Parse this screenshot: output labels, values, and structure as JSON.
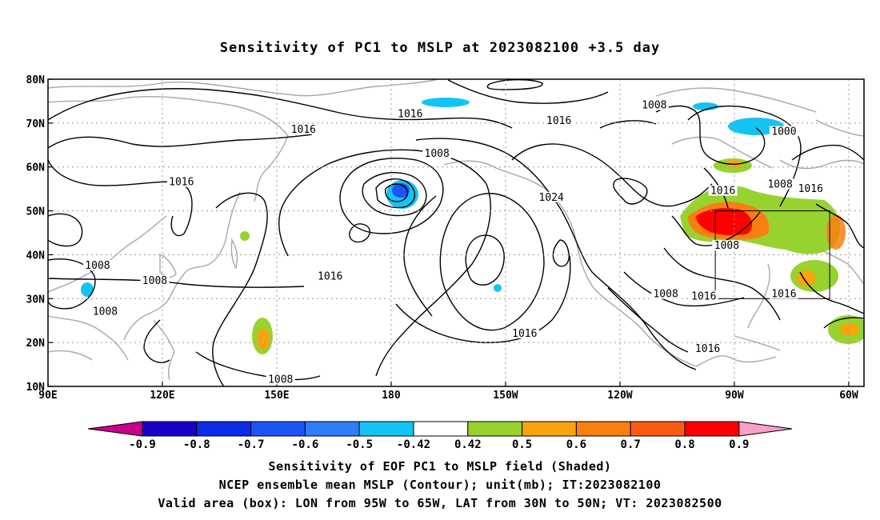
{
  "title": "Sensitivity of PC1 to MSLP at 2023082100 +3.5 day",
  "axes": {
    "lon_min": 90,
    "lon_max": 304,
    "lat_min": 10,
    "lat_max": 80,
    "x_ticks": [
      {
        "lon": 90,
        "label": "90E"
      },
      {
        "lon": 120,
        "label": "120E"
      },
      {
        "lon": 150,
        "label": "150E"
      },
      {
        "lon": 180,
        "label": "180"
      },
      {
        "lon": 210,
        "label": "150W"
      },
      {
        "lon": 240,
        "label": "120W"
      },
      {
        "lon": 270,
        "label": "90W"
      },
      {
        "lon": 300,
        "label": "60W"
      }
    ],
    "y_ticks": [
      {
        "lat": 80,
        "label": "80N"
      },
      {
        "lat": 70,
        "label": "70N"
      },
      {
        "lat": 60,
        "label": "60N"
      },
      {
        "lat": 50,
        "label": "50N"
      },
      {
        "lat": 40,
        "label": "40N"
      },
      {
        "lat": 30,
        "label": "30N"
      },
      {
        "lat": 20,
        "label": "20N"
      },
      {
        "lat": 10,
        "label": "10N"
      }
    ]
  },
  "valid_box": {
    "lon_min": 265,
    "lon_max": 295,
    "lat_min": 30,
    "lat_max": 50
  },
  "contour_labels": [
    {
      "text": "1008",
      "lon": 249,
      "lat": 73.5
    },
    {
      "text": "1016",
      "lon": 185,
      "lat": 71.5
    },
    {
      "text": "1016",
      "lon": 224,
      "lat": 70.0
    },
    {
      "text": "1016",
      "lon": 157,
      "lat": 68.0
    },
    {
      "text": "1000",
      "lon": 283,
      "lat": 67.5
    },
    {
      "text": "1008",
      "lon": 192,
      "lat": 62.5
    },
    {
      "text": "1016",
      "lon": 125,
      "lat": 56.0
    },
    {
      "text": "1008",
      "lon": 282,
      "lat": 55.5
    },
    {
      "text": "1016",
      "lon": 290,
      "lat": 54.5
    },
    {
      "text": "1016",
      "lon": 267,
      "lat": 54.0
    },
    {
      "text": "1024",
      "lon": 222,
      "lat": 52.5
    },
    {
      "text": "1008",
      "lon": 268,
      "lat": 41.5
    },
    {
      "text": "1016",
      "lon": 164,
      "lat": 34.5
    },
    {
      "text": "1008",
      "lon": 103,
      "lat": 37.0
    },
    {
      "text": "1008",
      "lon": 118,
      "lat": 33.5
    },
    {
      "text": "1008",
      "lon": 252,
      "lat": 30.5
    },
    {
      "text": "1016",
      "lon": 262,
      "lat": 30.0
    },
    {
      "text": "1016",
      "lon": 283,
      "lat": 30.5
    },
    {
      "text": "1008",
      "lon": 105,
      "lat": 26.5
    },
    {
      "text": "1016",
      "lon": 215,
      "lat": 21.5
    },
    {
      "text": "1016",
      "lon": 263,
      "lat": 18.0
    },
    {
      "text": "1008",
      "lon": 151,
      "lat": 11.0
    }
  ],
  "colorbar": {
    "labels": [
      "-0.9",
      "-0.8",
      "-0.7",
      "-0.6",
      "-0.5",
      "-0.42",
      "0.42",
      "0.5",
      "0.6",
      "0.7",
      "0.8",
      "0.9"
    ],
    "colors": [
      "#1800c8",
      "#0b2de6",
      "#1b55f5",
      "#2d7ef8",
      "#12c4f4",
      "#ffffff",
      "#98d22e",
      "#f9a30f",
      "#f98010",
      "#fb5a13",
      "#fe0000"
    ],
    "low_end_color": "#c8008e",
    "high_end_color": "#f9a0c8"
  },
  "captions": {
    "line1": "Sensitivity of EOF PC1 to MSLP field (Shaded)",
    "line2": "NCEP ensemble mean MSLP (Contour); unit(mb); IT:2023082100",
    "line3": "Valid area (box): LON from 95W to 65W, LAT from 30N to 50N; VT: 2023082500"
  }
}
